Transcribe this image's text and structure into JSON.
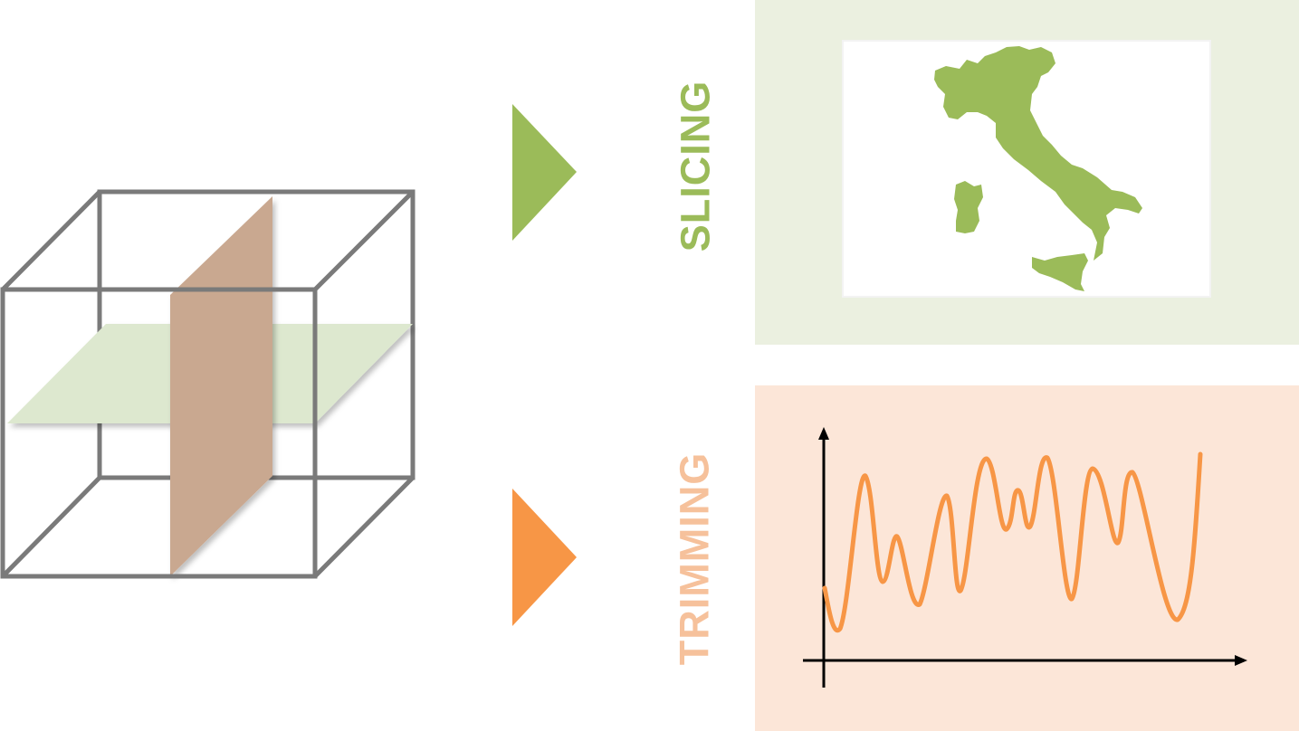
{
  "labels": {
    "slicing": "SLICING",
    "trimming": "TRIMMING"
  },
  "colors": {
    "cube_edge": "#7a7a7a",
    "green_plane": "#dde8cf",
    "brown_plane": "#c9a890",
    "slicing_accent": "#9bbb59",
    "slicing_panel_bg": "#ebf0e0",
    "trimming_accent": "#f79646",
    "trimming_label": "#f6c19b",
    "trimming_panel_bg": "#fce6d8",
    "axis": "#000000"
  },
  "icons": {
    "cube": "data-cube-icon",
    "slicing_arrow": "triangle-right-icon",
    "trimming_arrow": "triangle-right-icon",
    "map": "italy-map-icon",
    "plot": "line-chart-icon"
  }
}
